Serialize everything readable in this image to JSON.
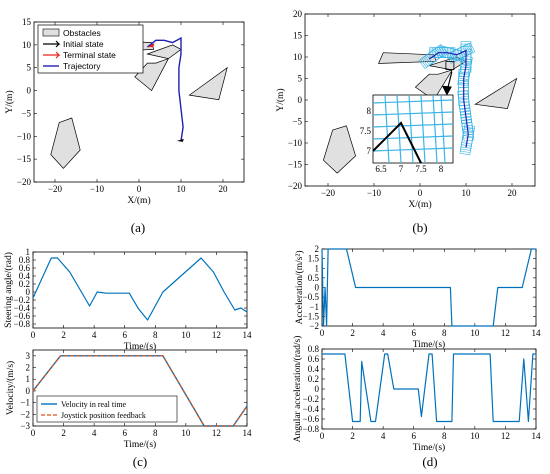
{
  "chart_data": [
    {
      "panel": "a",
      "type": "line",
      "xlabel": "X/(m)",
      "ylabel": "Y/(m)",
      "xlim": [
        -25,
        25
      ],
      "ylim": [
        -20,
        15
      ],
      "xticks": [
        -20,
        -10,
        0,
        10,
        20
      ],
      "yticks": [
        -20,
        -15,
        -10,
        -5,
        0,
        5,
        10,
        15
      ],
      "legend": [
        "Obstacles",
        "Initial state",
        "Terminal state",
        "Trajectory"
      ],
      "obstacles": [
        [
          [
            -8,
            11
          ],
          [
            3,
            10.5
          ],
          [
            3.5,
            9
          ],
          [
            -9,
            8.5
          ]
        ],
        [
          [
            2,
            8
          ],
          [
            8,
            10
          ],
          [
            10,
            9
          ],
          [
            7,
            7
          ]
        ],
        [
          [
            -19,
            -7
          ],
          [
            -16,
            -6
          ],
          [
            -14,
            -13
          ],
          [
            -18,
            -17
          ],
          [
            -21,
            -14
          ]
        ],
        [
          [
            -1,
            3
          ],
          [
            2,
            6
          ],
          [
            4,
            6
          ],
          [
            7,
            7
          ],
          [
            3,
            0
          ]
        ],
        [
          [
            12,
            -1
          ],
          [
            19,
            -2
          ],
          [
            21,
            5
          ],
          [
            15,
            1
          ]
        ]
      ],
      "trajectory": [
        [
          2,
          9.5
        ],
        [
          4,
          11
        ],
        [
          6,
          11
        ],
        [
          8,
          10.5
        ],
        [
          10,
          11.5
        ],
        [
          10,
          8
        ],
        [
          9.5,
          5
        ],
        [
          9.5,
          0
        ],
        [
          10,
          -4
        ],
        [
          10.5,
          -8
        ],
        [
          10,
          -11
        ]
      ],
      "initial_state": [
        9,
        -11
      ],
      "terminal_state": [
        2,
        9.5
      ]
    },
    {
      "panel": "b",
      "type": "line",
      "xlabel": "X/(m)",
      "ylabel": "Y/(m)",
      "xlim": [
        -25,
        25
      ],
      "ylim": [
        -20,
        20
      ],
      "xticks": [
        -20,
        -10,
        0,
        10,
        20
      ],
      "yticks": [
        -20,
        -15,
        -10,
        -5,
        0,
        5,
        10,
        15,
        20
      ],
      "inset_xticks": [
        6.5,
        7,
        7.5,
        8
      ],
      "inset_yticks": [
        7,
        7.5,
        8
      ],
      "obstacles": [
        [
          [
            -8,
            11
          ],
          [
            3,
            10.5
          ],
          [
            3.5,
            9
          ],
          [
            -9,
            8.5
          ]
        ],
        [
          [
            2,
            8
          ],
          [
            8,
            10
          ],
          [
            10,
            9
          ],
          [
            7,
            7
          ]
        ],
        [
          [
            -19,
            -7
          ],
          [
            -16,
            -6
          ],
          [
            -14,
            -13
          ],
          [
            -18,
            -17
          ],
          [
            -21,
            -14
          ]
        ],
        [
          [
            -1,
            3
          ],
          [
            2,
            6
          ],
          [
            4,
            6
          ],
          [
            7,
            7
          ],
          [
            3,
            0
          ]
        ],
        [
          [
            12,
            -1
          ],
          [
            19,
            -2
          ],
          [
            21,
            5
          ],
          [
            15,
            1
          ]
        ]
      ],
      "trajectory": [
        [
          2,
          9.5
        ],
        [
          4,
          11
        ],
        [
          6,
          11
        ],
        [
          8,
          10.5
        ],
        [
          10,
          11.5
        ],
        [
          10,
          8
        ],
        [
          9.5,
          5
        ],
        [
          9.5,
          0
        ],
        [
          10,
          -4
        ],
        [
          10.5,
          -8
        ],
        [
          10,
          -11
        ]
      ]
    },
    {
      "panel": "c-top",
      "type": "line",
      "xlabel": "Time/(s)",
      "ylabel": "Steering angle/(rad)",
      "xlim": [
        0,
        14
      ],
      "ylim": [
        -0.9,
        1
      ],
      "xticks": [
        0,
        2,
        4,
        6,
        8,
        10,
        12,
        14
      ],
      "yticks": [
        -0.8,
        -0.6,
        -0.4,
        -0.2,
        0,
        0.2,
        0.4,
        0.6,
        0.8,
        1
      ],
      "series": [
        {
          "x": [
            0,
            1.2,
            1.6,
            2.4,
            3.7,
            4.2,
            4.8,
            6.3,
            6.9,
            7.5,
            8.5,
            11.0,
            11.8,
            12.5,
            13.2,
            13.6,
            14
          ],
          "y": [
            -0.15,
            0.85,
            0.85,
            0.5,
            -0.35,
            0.0,
            -0.03,
            -0.03,
            -0.42,
            -0.7,
            0.0,
            0.85,
            0.5,
            0.0,
            -0.45,
            -0.4,
            -0.5
          ]
        }
      ]
    },
    {
      "panel": "c-bottom",
      "type": "line",
      "xlabel": "Time/(s)",
      "ylabel": "Velocity/(m/s)",
      "xlim": [
        0,
        14
      ],
      "ylim": [
        -3,
        3.5
      ],
      "xticks": [
        0,
        2,
        4,
        6,
        8,
        10,
        12,
        14
      ],
      "yticks": [
        -3,
        -2,
        -1,
        0,
        1,
        2,
        3
      ],
      "series": [
        {
          "name": "Velocity in real time",
          "x": [
            0,
            1.8,
            8.5,
            11.2,
            13.1,
            14
          ],
          "y": [
            0,
            3,
            3,
            -3,
            -3,
            -1.3
          ]
        },
        {
          "name": "Joystick position feedback",
          "x": [
            0,
            1.8,
            8.5,
            11.2,
            13.1,
            14
          ],
          "y": [
            0,
            3,
            3,
            -3,
            -3,
            -1.3
          ]
        }
      ]
    },
    {
      "panel": "d-top",
      "type": "line",
      "xlabel": "Time/(s)",
      "ylabel": "Acceleration/(m/s²)",
      "xlim": [
        0,
        14
      ],
      "ylim": [
        -2,
        2
      ],
      "xticks": [
        0,
        2,
        4,
        6,
        8,
        10,
        12,
        14
      ],
      "yticks": [
        -2,
        -1.5,
        -1,
        -0.5,
        0,
        0.5,
        1,
        1.5,
        2
      ],
      "series": [
        {
          "x": [
            0,
            0.1,
            0.2,
            0.3,
            0.4,
            1.6,
            2.2,
            8.4,
            8.5,
            11.2,
            11.5,
            13.1,
            13.7,
            14
          ],
          "y": [
            2,
            -2,
            0,
            -2,
            2,
            2,
            0,
            0,
            -2,
            -2,
            0,
            0,
            2,
            2
          ]
        }
      ]
    },
    {
      "panel": "d-bottom",
      "type": "line",
      "xlabel": "Time/(s)",
      "ylabel": "Angular acceleration/(rad/s)",
      "xlim": [
        0,
        14
      ],
      "ylim": [
        -0.8,
        0.8
      ],
      "xticks": [
        0,
        2,
        4,
        6,
        8,
        10,
        12,
        14
      ],
      "yticks": [
        -0.8,
        -0.6,
        -0.4,
        -0.2,
        0,
        0.2,
        0.4,
        0.6,
        0.8
      ],
      "series": [
        {
          "x": [
            0,
            0.3,
            1.5,
            2.0,
            2.2,
            2.5,
            2.6,
            3.2,
            3.5,
            4.1,
            4.3,
            4.7,
            4.8,
            6.3,
            6.5,
            7.0,
            7.2,
            7.5,
            8.0,
            8.5,
            8.6,
            11.0,
            11.2,
            11.7,
            12.2,
            12.9,
            13.2,
            13.5,
            13.8,
            14
          ],
          "y": [
            0.7,
            0.7,
            0.7,
            -0.65,
            -0.65,
            -0.65,
            0.55,
            -0.65,
            -0.65,
            0.7,
            0.7,
            0.0,
            0.0,
            0.0,
            -0.55,
            0.7,
            0.7,
            -0.65,
            -0.65,
            -0.65,
            0.7,
            0.7,
            -0.65,
            -0.65,
            -0.65,
            -0.65,
            0.6,
            -0.65,
            0.7,
            0.7
          ]
        }
      ]
    }
  ],
  "captions": [
    "(a)",
    "(b)",
    "(c)",
    "(d)"
  ],
  "colors": {
    "obstacle_fill": "#e0e0e0",
    "trajectory": "#1f1fb4",
    "terminal": "#e8221b",
    "initial": "#000000",
    "envelope": "#3cb4e6",
    "line": "#0072bd",
    "dashed": "#d95319"
  }
}
